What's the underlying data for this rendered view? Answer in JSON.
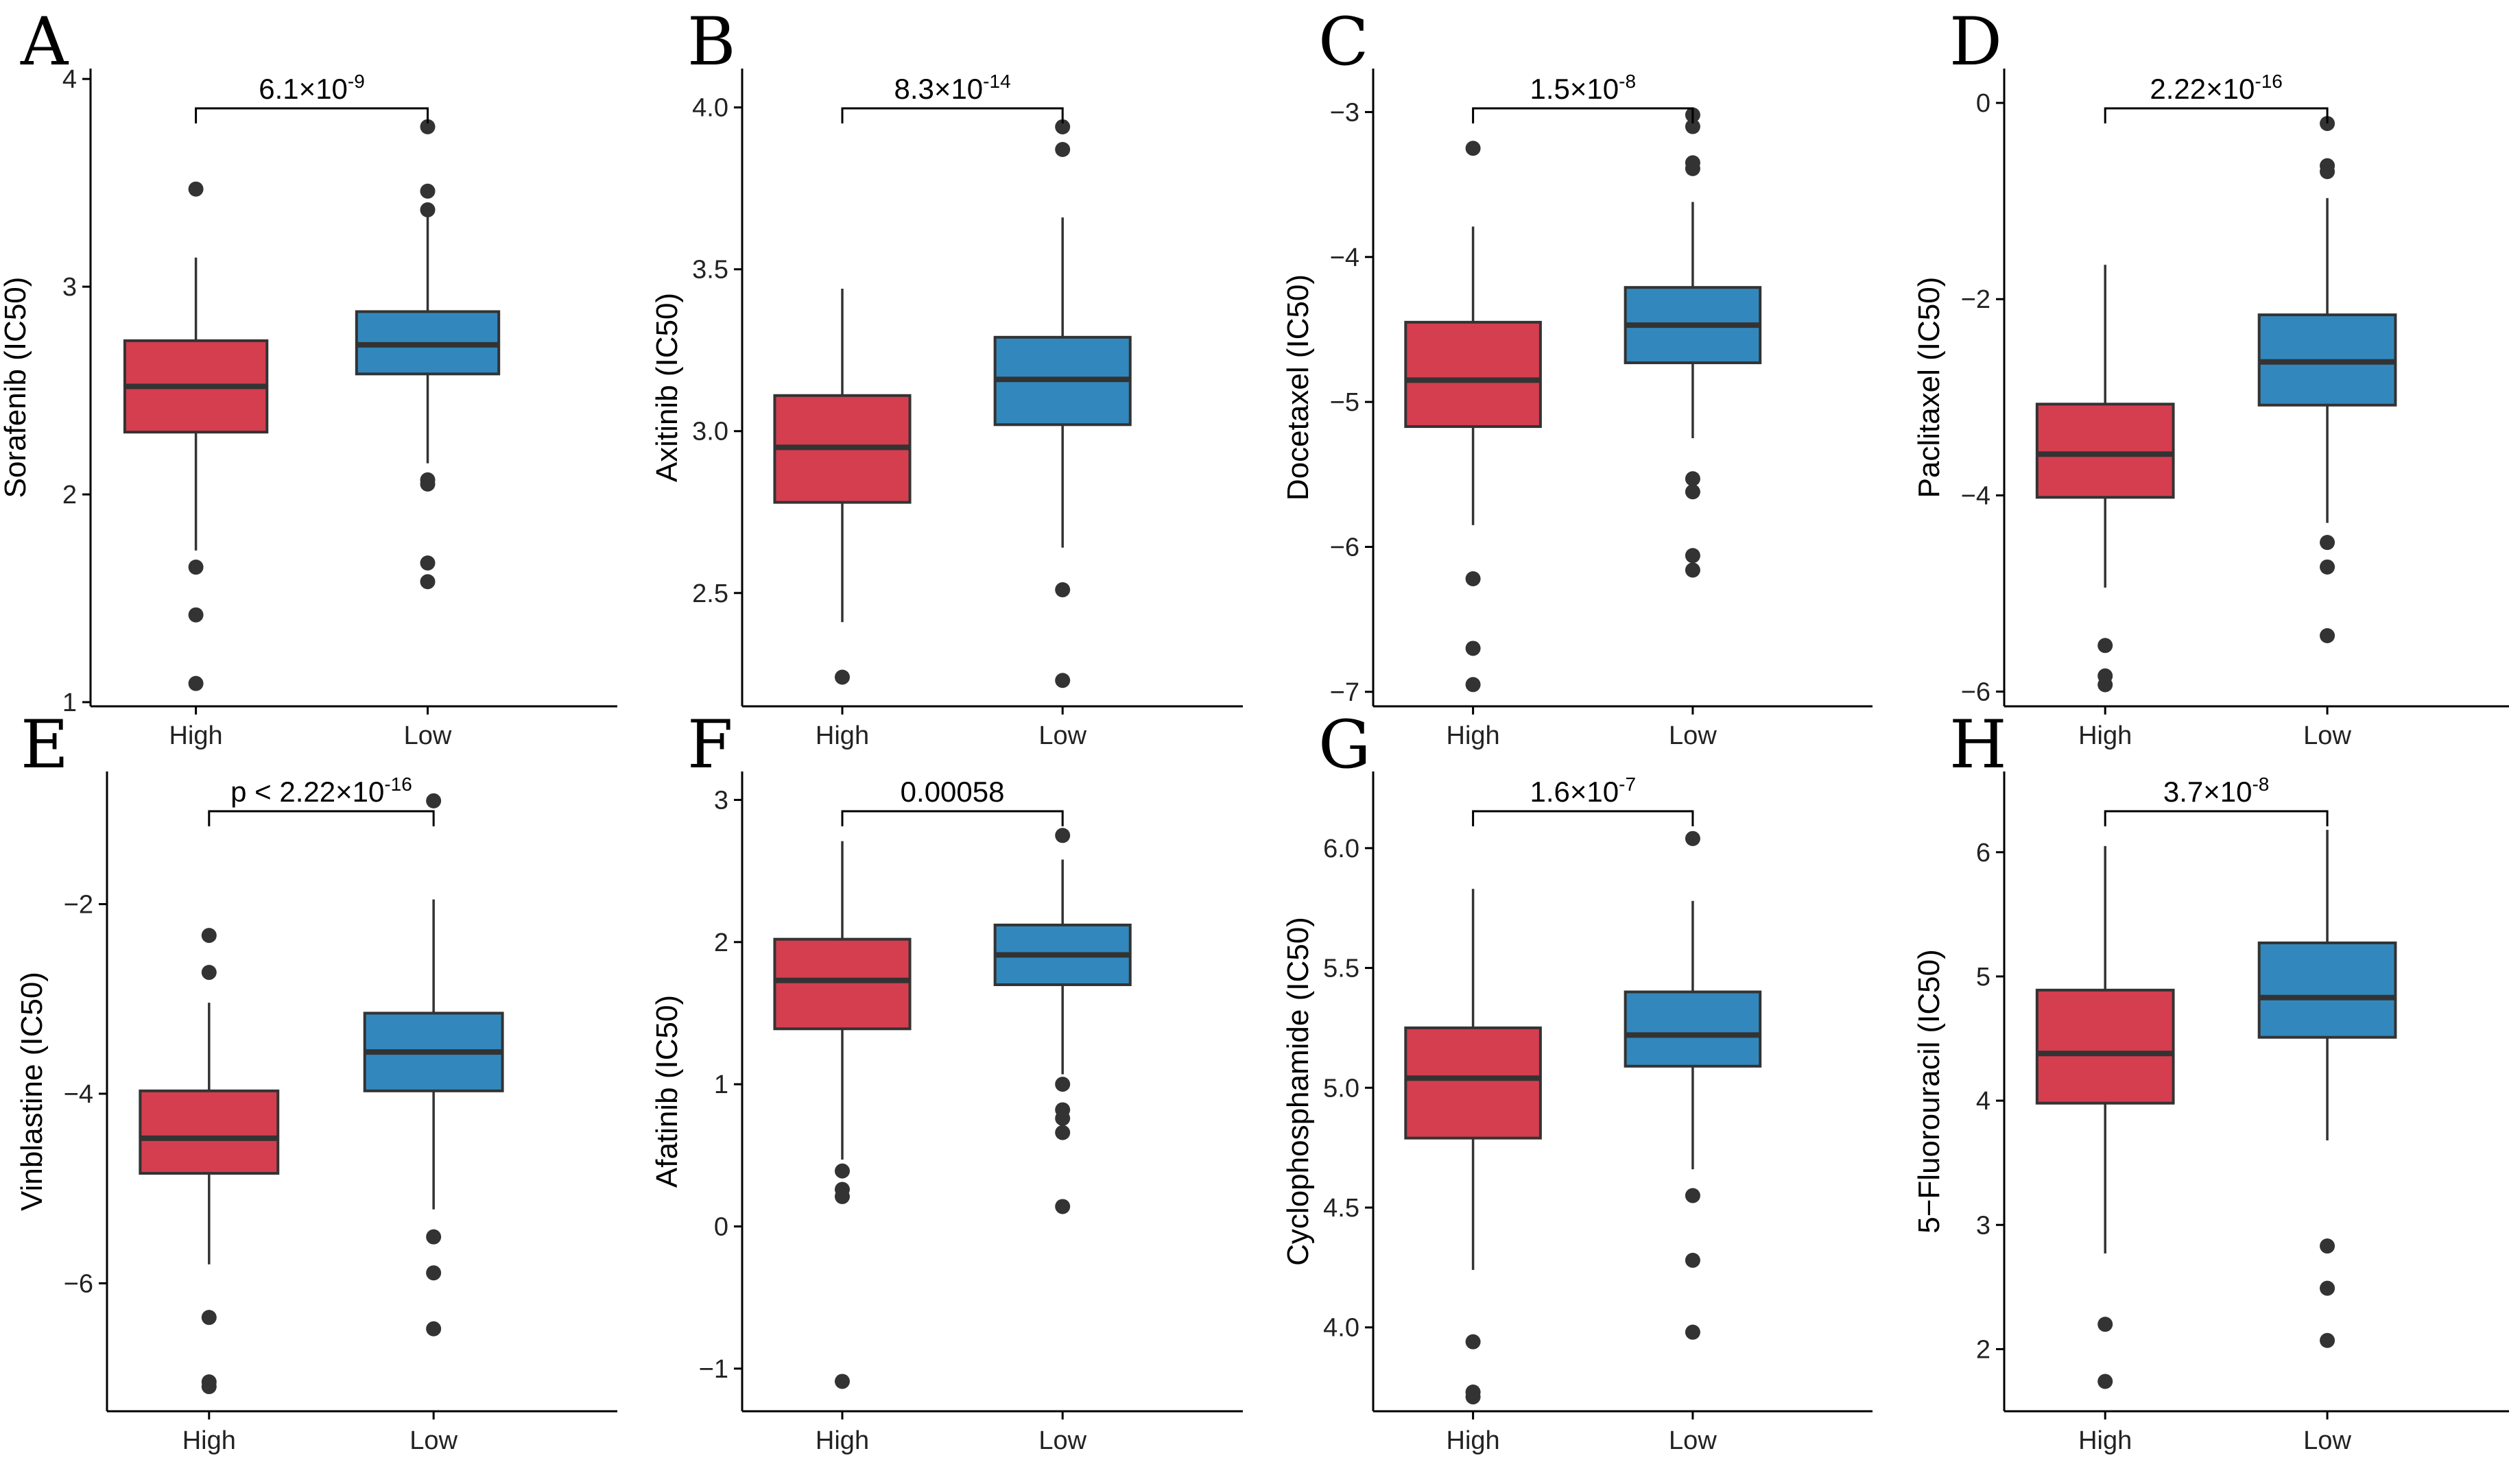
{
  "colors": {
    "high": "#d53e4f",
    "low": "#3288bd",
    "stroke": "#333333"
  },
  "chart_data": [
    {
      "type": "boxplot",
      "panel": "A",
      "ylabel": "Sorafenib (IC50)",
      "categories": [
        "High",
        "Low"
      ],
      "ylim": [
        0.98,
        4.05
      ],
      "yticks": [
        1,
        2,
        3,
        4
      ],
      "pvalue": {
        "prefix": "",
        "mantissa": "6.1×10",
        "exponent": "-9"
      },
      "boxes": [
        {
          "group": "High",
          "q1": 2.3,
          "median": 2.52,
          "q3": 2.74,
          "whisker_low": 1.73,
          "whisker_high": 3.14,
          "outliers": [
            3.47,
            1.65,
            1.42,
            1.09
          ]
        },
        {
          "group": "Low",
          "q1": 2.58,
          "median": 2.72,
          "q3": 2.88,
          "whisker_low": 2.15,
          "whisker_high": 3.37,
          "outliers": [
            3.77,
            3.46,
            3.37,
            2.07,
            2.05,
            1.67,
            1.58
          ]
        }
      ]
    },
    {
      "type": "boxplot",
      "panel": "B",
      "ylabel": "Axitinib (IC50)",
      "categories": [
        "High",
        "Low"
      ],
      "ylim": [
        2.15,
        4.12
      ],
      "yticks": [
        2.5,
        3.0,
        3.5,
        4.0
      ],
      "ytick_labels": [
        "2.5",
        "3.0",
        "3.5",
        "4.0"
      ],
      "pvalue": {
        "prefix": "",
        "mantissa": "8.3×10",
        "exponent": "-14"
      },
      "boxes": [
        {
          "group": "High",
          "q1": 2.78,
          "median": 2.95,
          "q3": 3.11,
          "whisker_low": 2.41,
          "whisker_high": 3.44,
          "outliers": [
            2.24
          ]
        },
        {
          "group": "Low",
          "q1": 3.02,
          "median": 3.16,
          "q3": 3.29,
          "whisker_low": 2.64,
          "whisker_high": 3.66,
          "outliers": [
            3.94,
            3.87,
            2.51,
            2.23
          ]
        }
      ]
    },
    {
      "type": "boxplot",
      "panel": "C",
      "ylabel": "Docetaxel (IC50)",
      "categories": [
        "High",
        "Low"
      ],
      "ylim": [
        -7.1,
        -2.7
      ],
      "yticks": [
        -7,
        -6,
        -5,
        -4,
        -3
      ],
      "ytick_labels": [
        "−7",
        "−6",
        "−5",
        "−4",
        "−3"
      ],
      "pvalue": {
        "prefix": "",
        "mantissa": "1.5×10",
        "exponent": "-8"
      },
      "boxes": [
        {
          "group": "High",
          "q1": -5.17,
          "median": -4.85,
          "q3": -4.45,
          "whisker_low": -5.85,
          "whisker_high": -3.79,
          "outliers": [
            -3.25,
            -6.22,
            -6.7,
            -6.95
          ]
        },
        {
          "group": "Low",
          "q1": -4.73,
          "median": -4.47,
          "q3": -4.21,
          "whisker_low": -5.25,
          "whisker_high": -3.62,
          "outliers": [
            -3.02,
            -3.1,
            -3.35,
            -3.39,
            -5.53,
            -5.62,
            -6.06,
            -6.16
          ]
        }
      ]
    },
    {
      "type": "boxplot",
      "panel": "D",
      "ylabel": "Paclitaxel (IC50)",
      "categories": [
        "High",
        "Low"
      ],
      "ylim": [
        -6.15,
        0.35
      ],
      "yticks": [
        -6,
        -4,
        -2,
        0
      ],
      "ytick_labels": [
        "−6",
        "−4",
        "−2",
        "0"
      ],
      "pvalue": {
        "prefix": "",
        "mantissa": "2.22×10",
        "exponent": "-16"
      },
      "boxes": [
        {
          "group": "High",
          "q1": -4.02,
          "median": -3.58,
          "q3": -3.07,
          "whisker_low": -4.94,
          "whisker_high": -1.65,
          "outliers": [
            -5.53,
            -5.84,
            -5.93
          ]
        },
        {
          "group": "Low",
          "q1": -3.08,
          "median": -2.64,
          "q3": -2.16,
          "whisker_low": -4.28,
          "whisker_high": -0.97,
          "outliers": [
            -0.21,
            -0.64,
            -0.7,
            -4.48,
            -4.73,
            -5.43
          ]
        }
      ]
    },
    {
      "type": "boxplot",
      "panel": "E",
      "ylabel": "Vinblastine (IC50)",
      "categories": [
        "High",
        "Low"
      ],
      "ylim": [
        -7.35,
        -0.6
      ],
      "yticks": [
        -6,
        -4,
        -2
      ],
      "ytick_labels": [
        "−6",
        "−4",
        "−2"
      ],
      "pvalue": {
        "prefix": "p < ",
        "mantissa": "2.22×10",
        "exponent": "-16"
      },
      "boxes": [
        {
          "group": "High",
          "q1": -4.84,
          "median": -4.47,
          "q3": -3.97,
          "whisker_low": -5.8,
          "whisker_high": -3.04,
          "outliers": [
            -2.33,
            -2.72,
            -6.36,
            -7.04,
            -7.09
          ]
        },
        {
          "group": "Low",
          "q1": -3.97,
          "median": -3.56,
          "q3": -3.15,
          "whisker_low": -5.22,
          "whisker_high": -1.95,
          "outliers": [
            -0.91,
            -5.51,
            -5.89,
            -6.48
          ]
        }
      ]
    },
    {
      "type": "boxplot",
      "panel": "F",
      "ylabel": "Afatinib (IC50)",
      "categories": [
        "High",
        "Low"
      ],
      "ylim": [
        -1.3,
        3.2
      ],
      "yticks": [
        -1,
        0,
        1,
        2,
        3
      ],
      "ytick_labels": [
        "−1",
        "0",
        "1",
        "2",
        "3"
      ],
      "pvalue": {
        "prefix": "",
        "mantissa": "0.00058",
        "exponent": ""
      },
      "boxes": [
        {
          "group": "High",
          "q1": 1.39,
          "median": 1.73,
          "q3": 2.02,
          "whisker_low": 0.47,
          "whisker_high": 2.71,
          "outliers": [
            0.39,
            0.26,
            0.21,
            -1.09
          ]
        },
        {
          "group": "Low",
          "q1": 1.7,
          "median": 1.91,
          "q3": 2.12,
          "whisker_low": 1.07,
          "whisker_high": 2.58,
          "outliers": [
            2.75,
            1.0,
            0.82,
            0.76,
            0.66,
            0.14
          ]
        }
      ]
    },
    {
      "type": "boxplot",
      "panel": "G",
      "ylabel": "Cyclophosphamide (IC50)",
      "categories": [
        "High",
        "Low"
      ],
      "ylim": [
        3.65,
        6.32
      ],
      "yticks": [
        4.0,
        4.5,
        5.0,
        5.5,
        6.0
      ],
      "ytick_labels": [
        "4.0",
        "4.5",
        "5.0",
        "5.5",
        "6.0"
      ],
      "pvalue": {
        "prefix": "",
        "mantissa": "1.6×10",
        "exponent": "-7"
      },
      "boxes": [
        {
          "group": "High",
          "q1": 4.79,
          "median": 5.04,
          "q3": 5.25,
          "whisker_low": 4.24,
          "whisker_high": 5.83,
          "outliers": [
            3.94,
            3.73,
            3.71
          ]
        },
        {
          "group": "Low",
          "q1": 5.09,
          "median": 5.22,
          "q3": 5.4,
          "whisker_low": 4.66,
          "whisker_high": 5.78,
          "outliers": [
            6.04,
            4.55,
            4.28,
            3.98
          ]
        }
      ]
    },
    {
      "type": "boxplot",
      "panel": "H",
      "ylabel": "5−Fluorouracil (IC50)",
      "categories": [
        "High",
        "Low"
      ],
      "ylim": [
        1.5,
        6.65
      ],
      "yticks": [
        2,
        3,
        4,
        5,
        6
      ],
      "ytick_labels": [
        "2",
        "3",
        "4",
        "5",
        "6"
      ],
      "pvalue": {
        "prefix": "",
        "mantissa": "3.7×10",
        "exponent": "-8"
      },
      "boxes": [
        {
          "group": "High",
          "q1": 3.98,
          "median": 4.38,
          "q3": 4.89,
          "whisker_low": 2.77,
          "whisker_high": 6.05,
          "outliers": [
            2.2,
            1.74
          ]
        },
        {
          "group": "Low",
          "q1": 4.51,
          "median": 4.83,
          "q3": 5.27,
          "whisker_low": 3.68,
          "whisker_high": 6.18,
          "outliers": [
            2.83,
            2.49,
            2.07
          ]
        }
      ]
    }
  ]
}
